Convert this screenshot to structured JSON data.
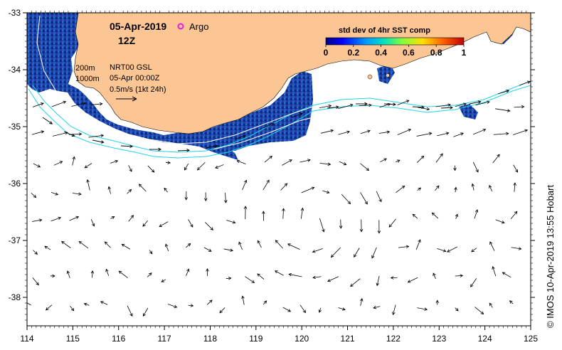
{
  "title": {
    "date": "05-Apr-2019",
    "hour": "12Z",
    "argo_label": "Argo"
  },
  "info": {
    "isobath_shallow": "200m",
    "isobath_deep": "1000m",
    "altimetry": "NRT00 GSL",
    "altimetry_time": "05-Apr 00:00Z",
    "scale_label": "0.5m/s (1kt 24h)"
  },
  "colorbar": {
    "title": "std dev of 4hr SST comp",
    "ticks": [
      "0",
      "0.2",
      "0.4",
      "0.6",
      "0.8",
      "1"
    ]
  },
  "axes": {
    "x_ticks": [
      "114",
      "115",
      "116",
      "117",
      "118",
      "119",
      "120",
      "121",
      "122",
      "123",
      "124",
      "125"
    ],
    "y_ticks": [
      "-33",
      "-34",
      "-35",
      "-36",
      "-37",
      "-38"
    ],
    "lon_range": [
      114,
      125
    ],
    "lat_range": [
      -38.5,
      -33
    ]
  },
  "credit": "© IMOS 10-Apr-2019 13:55 Hobart",
  "colors": {
    "land": "#fcc694",
    "ocean": "#ffffff",
    "sst_low": "#1a3c9e",
    "isobath": "#22d3e6",
    "argo": "#e020e0"
  }
}
